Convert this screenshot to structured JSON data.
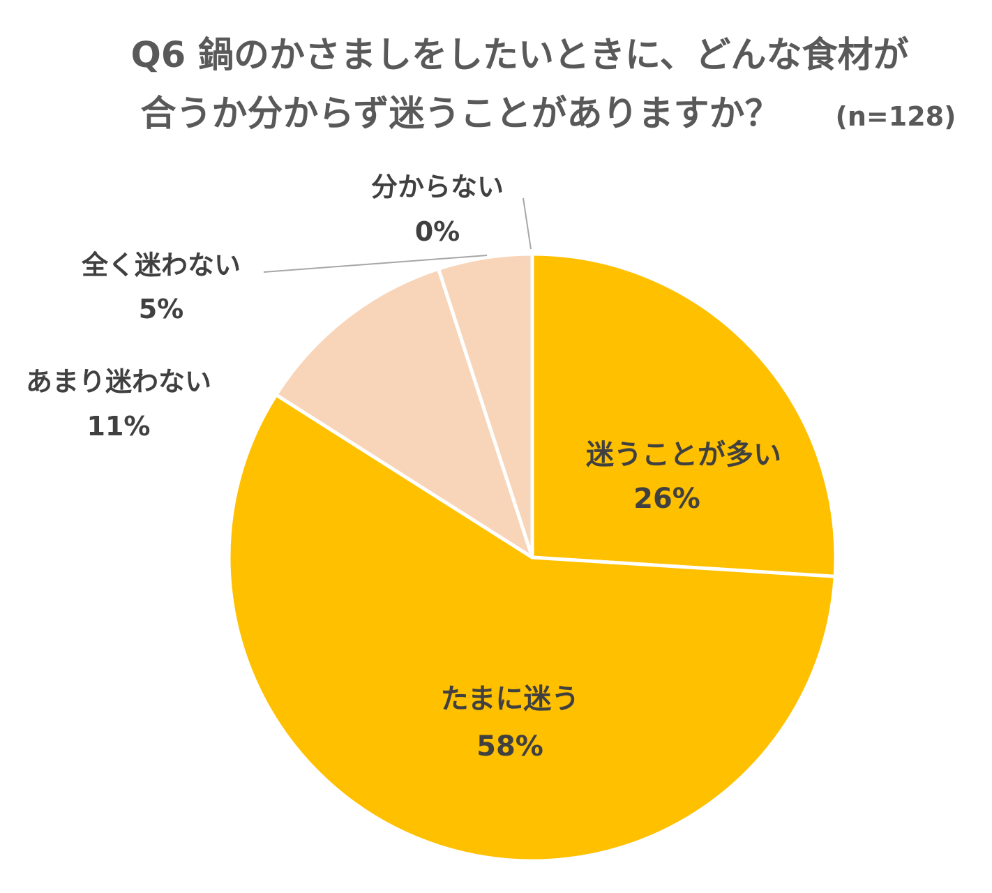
{
  "chart_data": {
    "type": "pie",
    "title_line1": "Q6 鍋のかさましをしたいときに、どんな食材が",
    "title_line2": "合うか分からず迷うことがありますか？",
    "sample_size": "(n=128)",
    "start_angle_deg": 0,
    "direction": "clockwise",
    "slices": [
      {
        "label": "迷うことが多い",
        "value": 26,
        "display": "26%",
        "color": "#FFC000"
      },
      {
        "label": "たまに迷う",
        "value": 58,
        "display": "58%",
        "color": "#FFC000"
      },
      {
        "label": "あまり迷わない",
        "value": 11,
        "display": "11%",
        "color": "#F8D5B8"
      },
      {
        "label": "全く迷わない",
        "value": 5,
        "display": "5%",
        "color": "#F8D5B8"
      },
      {
        "label": "分からない",
        "value": 0,
        "display": "0%",
        "color": "#F8D5B8"
      }
    ]
  }
}
